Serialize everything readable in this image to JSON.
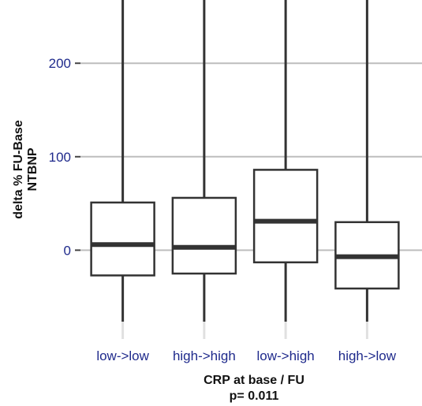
{
  "chart_data": {
    "type": "boxplot",
    "categories": [
      "low->low",
      "high->high",
      "low->high",
      "high->low"
    ],
    "boxes": [
      {
        "q1": -27,
        "median": 6,
        "q3": 51,
        "whisker_low": -85,
        "whisker_high": 250
      },
      {
        "q1": -25,
        "median": 3,
        "q3": 56,
        "whisker_low": -85,
        "whisker_high": 250
      },
      {
        "q1": -13,
        "median": 31,
        "q3": 86,
        "whisker_low": -85,
        "whisker_high": 250
      },
      {
        "q1": -41,
        "median": -7,
        "q3": 30,
        "whisker_low": -85,
        "whisker_high": 250
      }
    ],
    "ylabel_line1": "delta % FU-Base",
    "ylabel_line2": "NTBNP",
    "xlabel": "CRP at base / FU",
    "subtitle": "p= 0.011",
    "yticks": [
      0,
      100,
      200
    ],
    "ylim": [
      -95,
      255
    ],
    "grid": true,
    "colors": {
      "tick_text": "#1f2a8c",
      "box_stroke": "#333333",
      "grid": "#bdbdbd",
      "whisker_fade": "#e0e0e0"
    }
  }
}
